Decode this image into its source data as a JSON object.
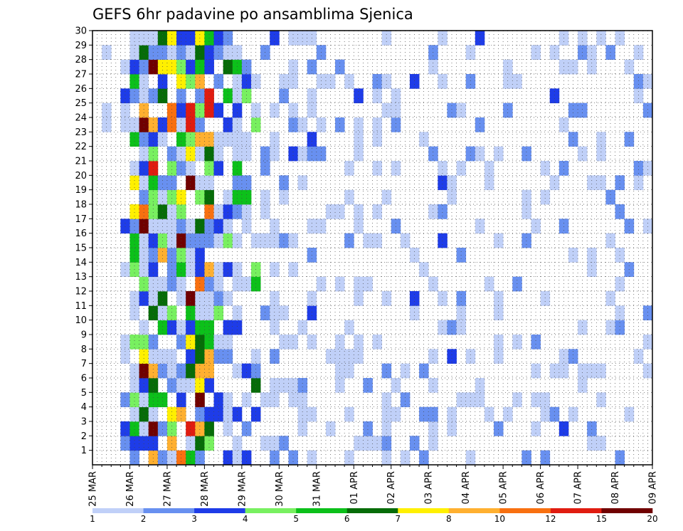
{
  "chart_data": {
    "type": "heatmap",
    "title": "GEFS 6hr padavine po ansamblima Sjenica",
    "x_tick_labels": [
      "25 MAR",
      "26 MAR",
      "27 MAR",
      "28 MAR",
      "29 MAR",
      "30 MAR",
      "31 MAR",
      "01 APR",
      "02 APR",
      "03 APR",
      "04 APR",
      "05 APR",
      "06 APR",
      "07 APR",
      "08 APR",
      "09 APR"
    ],
    "y_tick_labels": [
      "1",
      "2",
      "3",
      "4",
      "5",
      "6",
      "7",
      "8",
      "9",
      "10",
      "11",
      "12",
      "13",
      "14",
      "15",
      "16",
      "17",
      "18",
      "19",
      "20",
      "21",
      "22",
      "23",
      "24",
      "25",
      "26",
      "27",
      "28",
      "29",
      "30"
    ],
    "ensemble_members": 30,
    "time_steps_per_day": 4,
    "days": 15,
    "grid": true,
    "legend_position": "bottom",
    "colorbar": {
      "colors": [
        "#c0d0f8",
        "#6890f0",
        "#1e3ce8",
        "#78f060",
        "#0cc01a",
        "#066c08",
        "#fff000",
        "#ffb030",
        "#f87010",
        "#e01c10",
        "#700000"
      ],
      "tick_labels": [
        "1",
        "2",
        "3",
        "4",
        "5",
        "6",
        "7",
        "8",
        "10",
        "12",
        "15",
        "20"
      ]
    }
  }
}
